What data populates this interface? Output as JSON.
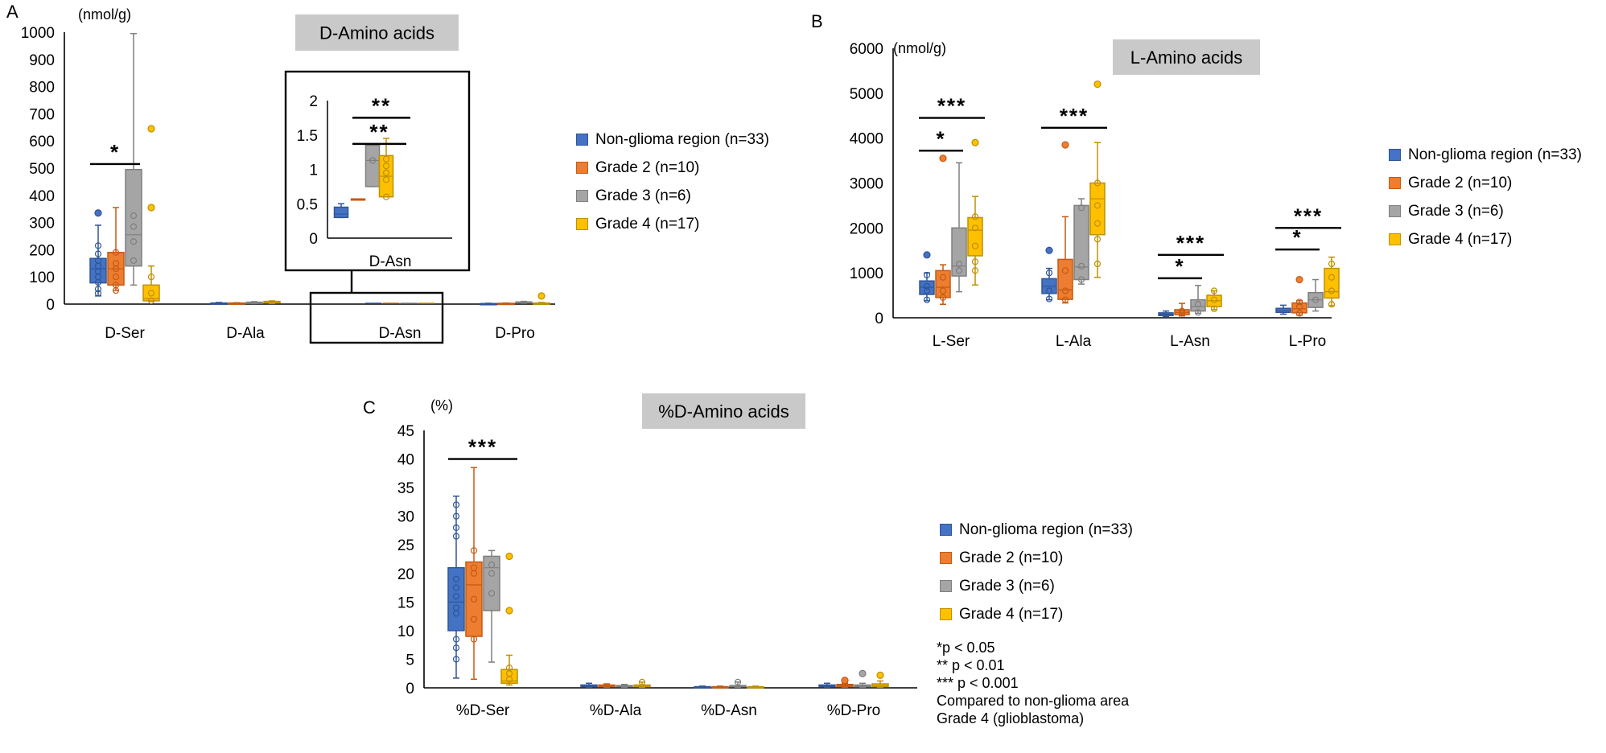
{
  "colors": {
    "nonglioma": "#4472C4",
    "grade2": "#ED7D31",
    "grade3": "#A5A5A5",
    "grade4": "#FFC000",
    "nonglioma_stroke": "#2F5597",
    "grade2_stroke": "#C55A11",
    "grade3_stroke": "#7F7F7F",
    "grade4_stroke": "#BF9000",
    "title_bg": "#C9C9C9"
  },
  "legend": [
    {
      "key": "nonglioma",
      "label": "Non-glioma region (n=33)"
    },
    {
      "key": "grade2",
      "label": "Grade 2 (n=10)"
    },
    {
      "key": "grade3",
      "label": "Grade 3 (n=6)"
    },
    {
      "key": "grade4",
      "label": "Grade 4 (n=17)"
    }
  ],
  "notes": [
    "*p < 0.05",
    "** p < 0.01",
    "*** p < 0.001",
    "Compared to non-glioma area",
    "Grade 4 (glioblastoma)"
  ],
  "chart_data": [
    {
      "panel": "A",
      "type": "box",
      "title": "D-Amino acids",
      "ylabel": "(nmol/g)",
      "ylim": [
        0,
        1000
      ],
      "yticks": [
        0,
        100,
        200,
        300,
        400,
        500,
        600,
        700,
        800,
        900,
        1000
      ],
      "categories": [
        "D-Ser",
        "D-Ala",
        "D-Asn",
        "D-Pro"
      ],
      "highlighted_category": "D-Asn",
      "series": [
        {
          "key": "nonglioma",
          "name": "Non-glioma region (n=33)",
          "boxes": [
            {
              "min": 30,
              "q1": 78,
              "median": 130,
              "q3": 168,
              "max": 290,
              "outliers": [
                335
              ],
              "points": [
                40,
                55,
                80,
                100,
                120,
                140,
                160,
                185,
                215
              ]
            },
            {
              "min": 1,
              "q1": 2,
              "median": 3,
              "q3": 4,
              "max": 6,
              "outliers": [],
              "points": []
            },
            {
              "min": 0.3,
              "q1": 0.3,
              "median": 0.35,
              "q3": 0.45,
              "max": 0.5,
              "outliers": [],
              "points": []
            },
            {
              "min": 0.5,
              "q1": 1,
              "median": 1.5,
              "q3": 2,
              "max": 3,
              "outliers": [],
              "points": []
            }
          ]
        },
        {
          "key": "grade2",
          "name": "Grade 2 (n=10)",
          "boxes": [
            {
              "min": 50,
              "q1": 70,
              "median": 130,
              "q3": 190,
              "max": 355,
              "outliers": [],
              "points": [
                50,
                70,
                100,
                130,
                150,
                190
              ]
            },
            {
              "min": 1,
              "q1": 2,
              "median": 3,
              "q3": 4,
              "max": 5,
              "outliers": [],
              "points": []
            },
            {
              "min": 0.57,
              "q1": 0.57,
              "median": 0.57,
              "q3": 0.57,
              "max": 0.57,
              "outliers": [],
              "points": []
            },
            {
              "min": 1,
              "q1": 2,
              "median": 2.5,
              "q3": 3,
              "max": 4,
              "outliers": [],
              "points": []
            }
          ]
        },
        {
          "key": "grade3",
          "name": "Grade 3 (n=6)",
          "boxes": [
            {
              "min": 70,
              "q1": 140,
              "median": 255,
              "q3": 495,
              "max": 995,
              "outliers": [],
              "points": [
                160,
                230,
                285,
                325
              ]
            },
            {
              "min": 2,
              "q1": 3,
              "median": 5,
              "q3": 7,
              "max": 9,
              "outliers": [],
              "points": []
            },
            {
              "min": 0.75,
              "q1": 0.75,
              "median": 1.13,
              "q3": 1.35,
              "max": 1.35,
              "outliers": [],
              "points": [
                1.13
              ]
            },
            {
              "min": 3,
              "q1": 4,
              "median": 6,
              "q3": 8,
              "max": 10,
              "outliers": [],
              "points": []
            }
          ]
        },
        {
          "key": "grade4",
          "name": "Grade 4 (n=17)",
          "boxes": [
            {
              "min": 10,
              "q1": 12,
              "median": 20,
              "q3": 70,
              "max": 140,
              "outliers": [
                355,
                645
              ],
              "points": [
                12,
                40,
                100
              ]
            },
            {
              "min": 2,
              "q1": 4,
              "median": 6,
              "q3": 10,
              "max": 12,
              "outliers": [],
              "points": []
            },
            {
              "min": 0.6,
              "q1": 0.6,
              "median": 0.9,
              "q3": 1.2,
              "max": 1.45,
              "outliers": [],
              "points": [
                0.6,
                0.85,
                0.95,
                1.05,
                1.15
              ]
            },
            {
              "min": 1,
              "q1": 2,
              "median": 3,
              "q3": 4,
              "max": 6,
              "outliers": [
                30
              ],
              "points": []
            }
          ]
        }
      ],
      "significance": [
        {
          "category": "D-Ser",
          "label": "*",
          "y": 515
        }
      ],
      "inset": {
        "category": "D-Asn",
        "ylim": [
          0,
          2
        ],
        "yticks": [
          "0",
          "0.5",
          "1",
          "1.5",
          "2"
        ],
        "xlabel": "D-Asn",
        "significance": [
          {
            "label": "**",
            "y": 1.75
          },
          {
            "label": "**",
            "y": 1.37
          }
        ]
      }
    },
    {
      "panel": "B",
      "type": "box",
      "title": "L-Amino acids",
      "ylabel": "(nmol/g)",
      "ylim": [
        0,
        6000
      ],
      "yticks": [
        0,
        1000,
        2000,
        3000,
        4000,
        5000,
        6000
      ],
      "categories": [
        "L-Ser",
        "L-Ala",
        "L-Asn",
        "L-Pro"
      ],
      "series": [
        {
          "key": "nonglioma",
          "name": "Non-glioma region (n=33)",
          "boxes": [
            {
              "min": 380,
              "q1": 520,
              "median": 680,
              "q3": 820,
              "max": 1000,
              "outliers": [
                1400
              ],
              "points": [
                400,
                600,
                700,
                950
              ]
            },
            {
              "min": 400,
              "q1": 540,
              "median": 700,
              "q3": 870,
              "max": 1100,
              "outliers": [
                1500
              ],
              "points": [
                420,
                600,
                1000
              ]
            },
            {
              "min": 30,
              "q1": 50,
              "median": 80,
              "q3": 110,
              "max": 150,
              "outliers": [],
              "points": []
            },
            {
              "min": 80,
              "q1": 120,
              "median": 160,
              "q3": 210,
              "max": 280,
              "outliers": [],
              "points": []
            }
          ]
        },
        {
          "key": "grade2",
          "name": "Grade 2 (n=10)",
          "boxes": [
            {
              "min": 300,
              "q1": 450,
              "median": 680,
              "q3": 1050,
              "max": 1180,
              "outliers": [
                3550
              ],
              "points": [
                450,
                600,
                900
              ]
            },
            {
              "min": 330,
              "q1": 410,
              "median": 620,
              "q3": 1300,
              "max": 2250,
              "outliers": [
                3850
              ],
              "points": [
                400,
                600,
                1050
              ]
            },
            {
              "min": 40,
              "q1": 70,
              "median": 120,
              "q3": 180,
              "max": 320,
              "outliers": [],
              "points": [
                100,
                150
              ]
            },
            {
              "min": 60,
              "q1": 110,
              "median": 200,
              "q3": 330,
              "max": 380,
              "outliers": [
                850
              ],
              "points": [
                100,
                250,
                350
              ]
            }
          ]
        },
        {
          "key": "grade3",
          "name": "Grade 3 (n=6)",
          "boxes": [
            {
              "min": 580,
              "q1": 930,
              "median": 1150,
              "q3": 2000,
              "max": 3450,
              "outliers": [],
              "points": [
                1050,
                1200
              ]
            },
            {
              "min": 750,
              "q1": 850,
              "median": 1130,
              "q3": 2500,
              "max": 2650,
              "outliers": [],
              "points": [
                850,
                1150,
                2450
              ]
            },
            {
              "min": 100,
              "q1": 150,
              "median": 250,
              "q3": 400,
              "max": 720,
              "outliers": [],
              "points": [
                120,
                300
              ]
            },
            {
              "min": 150,
              "q1": 230,
              "median": 400,
              "q3": 560,
              "max": 850,
              "outliers": [],
              "points": [
                400
              ]
            }
          ]
        },
        {
          "key": "grade4",
          "name": "Grade 4 (n=17)",
          "boxes": [
            {
              "min": 730,
              "q1": 1380,
              "median": 1950,
              "q3": 2230,
              "max": 2700,
              "outliers": [
                3900
              ],
              "points": [
                1050,
                1250,
                1600,
                2000,
                2250
              ]
            },
            {
              "min": 900,
              "q1": 1850,
              "median": 2650,
              "q3": 3000,
              "max": 3900,
              "outliers": [
                5200
              ],
              "points": [
                1200,
                1750,
                2100,
                2500,
                3000
              ]
            },
            {
              "min": 180,
              "q1": 250,
              "median": 380,
              "q3": 500,
              "max": 600,
              "outliers": [],
              "points": [
                200,
                400,
                600
              ]
            },
            {
              "min": 270,
              "q1": 440,
              "median": 580,
              "q3": 1100,
              "max": 1350,
              "outliers": [],
              "points": [
                300,
                600,
                900,
                1200
              ]
            }
          ]
        }
      ],
      "significance": [
        {
          "category": "L-Ser",
          "label": "***",
          "y": 4450,
          "span": "wide"
        },
        {
          "category": "L-Ser",
          "label": "*",
          "y": 3720,
          "span": "narrow"
        },
        {
          "category": "L-Ala",
          "label": "***",
          "y": 4230,
          "span": "wide"
        },
        {
          "category": "L-Asn",
          "label": "***",
          "y": 1400,
          "span": "wide"
        },
        {
          "category": "L-Asn",
          "label": "*",
          "y": 880,
          "span": "narrow"
        },
        {
          "category": "L-Pro",
          "label": "***",
          "y": 2000,
          "span": "wide"
        },
        {
          "category": "L-Pro",
          "label": "*",
          "y": 1520,
          "span": "narrow"
        }
      ]
    },
    {
      "panel": "C",
      "type": "box",
      "title": "%D-Amino acids",
      "ylabel": "(%)",
      "ylim": [
        0,
        45
      ],
      "yticks": [
        0,
        5,
        10,
        15,
        20,
        25,
        30,
        35,
        40,
        45
      ],
      "categories": [
        "%D-Ser",
        "%D-Ala",
        "%D-Asn",
        "%D-Pro"
      ],
      "series": [
        {
          "key": "nonglioma",
          "name": "Non-glioma region (n=33)",
          "boxes": [
            {
              "min": 1.7,
              "q1": 10,
              "median": 15,
              "q3": 21,
              "max": 33.5,
              "outliers": [],
              "points": [
                5,
                7,
                8.5,
                13,
                14,
                16,
                17.5,
                19,
                26.5,
                28,
                30,
                32
              ]
            },
            {
              "min": 0.1,
              "q1": 0.2,
              "median": 0.3,
              "q3": 0.5,
              "max": 0.8,
              "outliers": [],
              "points": []
            },
            {
              "min": 0.05,
              "q1": 0.1,
              "median": 0.15,
              "q3": 0.2,
              "max": 0.3,
              "outliers": [],
              "points": []
            },
            {
              "min": 0.1,
              "q1": 0.2,
              "median": 0.3,
              "q3": 0.5,
              "max": 0.8,
              "outliers": [],
              "points": []
            }
          ]
        },
        {
          "key": "grade2",
          "name": "Grade 2 (n=10)",
          "boxes": [
            {
              "min": 1.5,
              "q1": 9,
              "median": 18,
              "q3": 22,
              "max": 38.5,
              "outliers": [],
              "points": [
                8.5,
                12,
                15.5,
                20,
                21,
                24
              ]
            },
            {
              "min": 0.1,
              "q1": 0.2,
              "median": 0.3,
              "q3": 0.5,
              "max": 0.7,
              "outliers": [],
              "points": []
            },
            {
              "min": 0.05,
              "q1": 0.1,
              "median": 0.15,
              "q3": 0.2,
              "max": 0.3,
              "outliers": [],
              "points": []
            },
            {
              "min": 0.1,
              "q1": 0.2,
              "median": 0.4,
              "q3": 0.6,
              "max": 0.8,
              "outliers": [
                1.3
              ],
              "points": []
            }
          ]
        },
        {
          "key": "grade3",
          "name": "Grade 3 (n=6)",
          "boxes": [
            {
              "min": 4.5,
              "q1": 13.5,
              "median": 21,
              "q3": 23,
              "max": 24,
              "outliers": [],
              "points": [
                16.5,
                20,
                21.5
              ]
            },
            {
              "min": 0.1,
              "q1": 0.2,
              "median": 0.3,
              "q3": 0.4,
              "max": 0.6,
              "outliers": [],
              "points": []
            },
            {
              "min": 0.1,
              "q1": 0.2,
              "median": 0.3,
              "q3": 0.4,
              "max": 1,
              "outliers": [],
              "points": [
                1
              ]
            },
            {
              "min": 0.1,
              "q1": 0.2,
              "median": 0.3,
              "q3": 0.5,
              "max": 0.8,
              "outliers": [
                2.5
              ],
              "points": []
            }
          ]
        },
        {
          "key": "grade4",
          "name": "Grade 4 (n=17)",
          "boxes": [
            {
              "min": 0.5,
              "q1": 0.8,
              "median": 1.2,
              "q3": 3.2,
              "max": 5.7,
              "outliers": [
                13.5,
                23
              ],
              "points": [
                1.5,
                2.5,
                3.5
              ]
            },
            {
              "min": 0.1,
              "q1": 0.2,
              "median": 0.3,
              "q3": 0.5,
              "max": 1,
              "outliers": [],
              "points": [
                1
              ]
            },
            {
              "min": 0.05,
              "q1": 0.1,
              "median": 0.15,
              "q3": 0.2,
              "max": 0.3,
              "outliers": [],
              "points": []
            },
            {
              "min": 0.1,
              "q1": 0.2,
              "median": 0.4,
              "q3": 0.7,
              "max": 1.2,
              "outliers": [
                2.2
              ],
              "points": []
            }
          ]
        }
      ],
      "significance": [
        {
          "category": "%D-Ser",
          "label": "***",
          "y": 40
        }
      ]
    }
  ]
}
